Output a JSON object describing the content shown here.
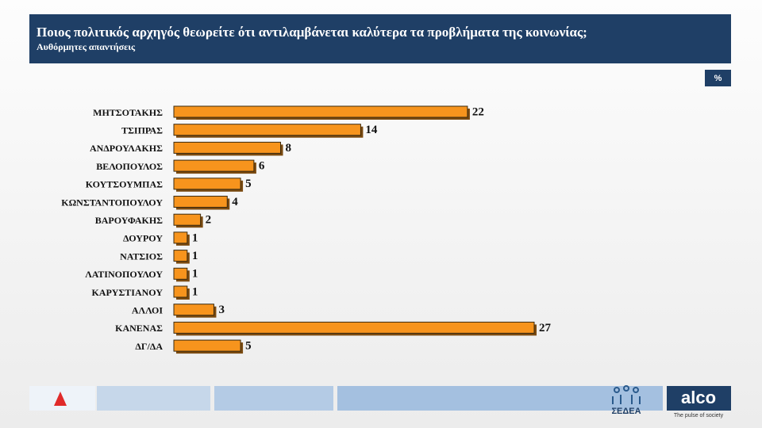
{
  "chart_data": {
    "type": "bar",
    "orientation": "horizontal",
    "title": "Ποιος πολιτικός αρχηγός θεωρείτε ότι αντιλαμβάνεται καλύτερα τα προβλήματα της κοινωνίας;",
    "subtitle": "Αυθόρμητες απαντήσεις",
    "unit": "%",
    "categories": [
      "ΜΗΤΣΟΤΑΚΗΣ",
      "ΤΣΙΠΡΑΣ",
      "ΑΝΔΡΟΥΛΑΚΗΣ",
      "ΒΕΛΟΠΟΥΛΟΣ",
      "ΚΟΥΤΣΟΥΜΠΑΣ",
      "ΚΩΝΣΤΑΝΤΟΠΟΥΛΟΥ",
      "ΒΑΡΟΥΦΑΚΗΣ",
      "ΔΟΥΡΟΥ",
      "ΝΑΤΣΙΟΣ",
      "ΛΑΤΙΝΟΠΟΥΛΟΥ",
      "ΚΑΡΥΣΤΙΑΝΟΥ",
      "ΑΛΛΟΙ",
      "ΚΑΝΕΝΑΣ",
      "ΔΓ/ΔΑ"
    ],
    "values": [
      22,
      14,
      8,
      6,
      5,
      4,
      2,
      1,
      1,
      1,
      1,
      3,
      27,
      5
    ],
    "color": "#f7941d"
  },
  "footer": {
    "sedea": "ΣΕΔΕΑ",
    "alco": "alco",
    "tagline": "The pulse of society"
  }
}
